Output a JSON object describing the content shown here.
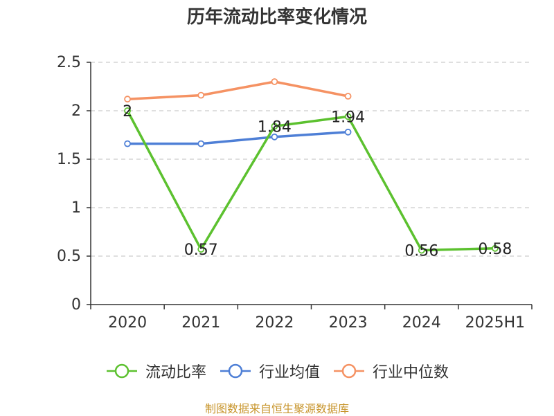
{
  "chart_data": {
    "type": "line",
    "title": "历年流动比率变化情况",
    "categories": [
      "2020",
      "2021",
      "2022",
      "2023",
      "2024",
      "2025H1"
    ],
    "ylim": [
      0,
      2.5
    ],
    "yticks": [
      "0",
      "0.5",
      "1",
      "1.5",
      "2",
      "2.5"
    ],
    "grid": true,
    "legend_position": "bottom",
    "series": [
      {
        "name": "流动比率",
        "color": "#5cc12f",
        "values": [
          2.0,
          0.57,
          1.84,
          1.94,
          0.56,
          0.58
        ],
        "labels": [
          "2",
          "0.57",
          "1.84",
          "1.94",
          "0.56",
          "0.58"
        ]
      },
      {
        "name": "行业均值",
        "color": "#4e7fd6",
        "values": [
          1.66,
          1.66,
          1.73,
          1.78,
          null,
          null
        ]
      },
      {
        "name": "行业中位数",
        "color": "#f59263",
        "values": [
          2.12,
          2.16,
          2.3,
          2.15,
          null,
          null
        ]
      }
    ]
  },
  "source": "制图数据来自恒生聚源数据库"
}
